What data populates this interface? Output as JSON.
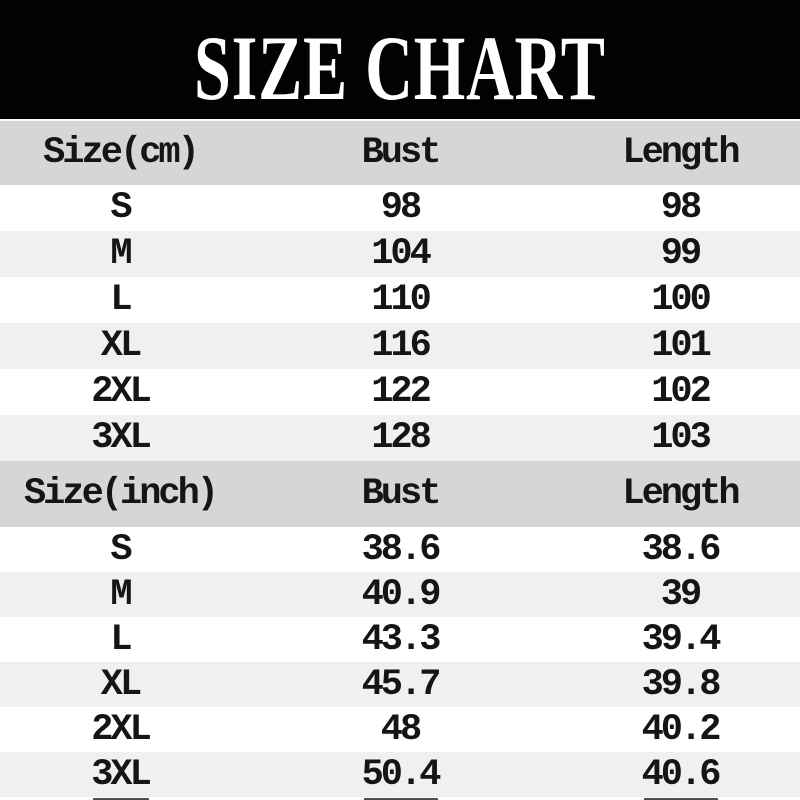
{
  "title": {
    "text": "SIZE CHART"
  },
  "table_cm": {
    "headers": {
      "size": "Size(cm)",
      "bust": "Bust",
      "length": "Length"
    },
    "rows": [
      {
        "size": "S",
        "bust": "98",
        "length": "98"
      },
      {
        "size": "M",
        "bust": "104",
        "length": "99"
      },
      {
        "size": "L",
        "bust": "110",
        "length": "100"
      },
      {
        "size": "XL",
        "bust": "116",
        "length": "101"
      },
      {
        "size": "2XL",
        "bust": "122",
        "length": "102"
      },
      {
        "size": "3XL",
        "bust": "128",
        "length": "103"
      }
    ]
  },
  "table_inch": {
    "headers": {
      "size": "Size(inch)",
      "bust": "Bust",
      "length": "Length"
    },
    "rows": [
      {
        "size": "S",
        "bust": "38.6",
        "length": "38.6"
      },
      {
        "size": "M",
        "bust": "40.9",
        "length": "39"
      },
      {
        "size": "L",
        "bust": "43.3",
        "length": "39.4"
      },
      {
        "size": "XL",
        "bust": "45.7",
        "length": "39.8"
      },
      {
        "size": "2XL",
        "bust": "48",
        "length": "40.2"
      },
      {
        "size": "3XL",
        "bust": "50.4",
        "length": "40.6"
      }
    ]
  },
  "colors": {
    "banner_bg": "#020202",
    "banner_text": "#ffffff",
    "header_row_bg": "#d6d6d6",
    "row_bg": "#ffffff",
    "row_alt_bg": "#f0f0f0",
    "text": "#151515"
  }
}
